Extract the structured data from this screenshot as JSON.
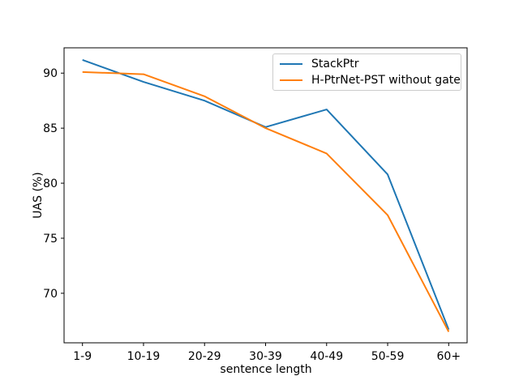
{
  "chart_data": {
    "type": "line",
    "title": "",
    "xlabel": "sentence length",
    "ylabel": "UAS (%)",
    "categories": [
      "1-9",
      "10-19",
      "20-29",
      "30-39",
      "40-49",
      "50-59",
      "60+"
    ],
    "series": [
      {
        "name": "StackPtr",
        "color": "#1f77b4",
        "values": [
          91.2,
          89.2,
          87.5,
          85.1,
          86.7,
          80.8,
          66.7
        ]
      },
      {
        "name": "H-PtrNet-PST without gate",
        "color": "#ff7f0e",
        "values": [
          90.1,
          89.9,
          87.9,
          85.0,
          82.7,
          77.1,
          66.5
        ]
      }
    ],
    "ylim": [
      65.5,
      92.3
    ],
    "yticks": [
      70,
      75,
      80,
      85,
      90
    ],
    "grid": false,
    "legend": {
      "position": "upper right",
      "entries": [
        "StackPtr",
        "H-PtrNet-PST without gate"
      ]
    },
    "colors": {
      "background": "#ffffff",
      "spine": "#000000",
      "legend_border": "#cccccc"
    }
  }
}
